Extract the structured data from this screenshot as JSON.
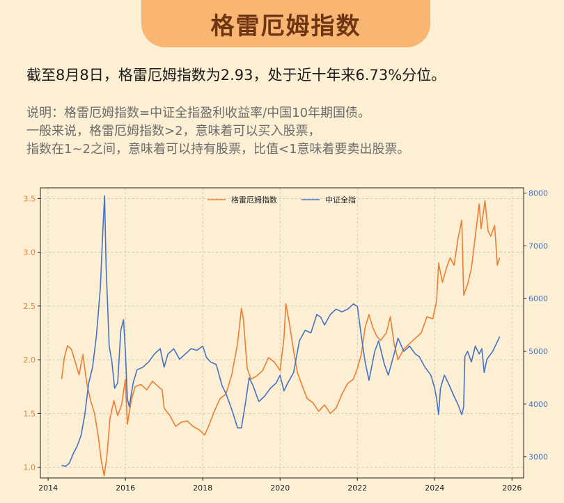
{
  "title": "格雷厄姆指数",
  "headline": "截至8月8日，格雷厄姆指数为2.93，处于近十年来6.73%分位。",
  "notes": [
    "说明：格雷厄姆指数=中证全指盈利收益率/中国10年期国债。",
    "一般来说，格雷厄姆指数>2，意味着可以买入股票，",
    "指数在1~2之间，意味着可以持有股票，比值<1意味着要卖出股票。"
  ],
  "chart_data": {
    "type": "line",
    "xlim": [
      2013.8,
      2026.3
    ],
    "x_ticks": [
      2014,
      2016,
      2018,
      2020,
      2022,
      2024,
      2026
    ],
    "y_left": {
      "lim": [
        0.9,
        3.6
      ],
      "ticks": [
        "1.0",
        "1.5",
        "2.0",
        "2.5",
        "3.0",
        "3.5"
      ],
      "color": "#ed7d31"
    },
    "y_right": {
      "lim": [
        2600,
        8100
      ],
      "ticks": [
        "3000",
        "4000",
        "5000",
        "6000",
        "7000",
        "8000"
      ],
      "color": "#4472c4"
    },
    "grid": true,
    "legend_position": "top-center",
    "series": [
      {
        "name": "格雷厄姆指数",
        "axis": "left",
        "color": "#ed7d31",
        "points": [
          [
            2014.35,
            1.82
          ],
          [
            2014.42,
            2.02
          ],
          [
            2014.5,
            2.13
          ],
          [
            2014.6,
            2.1
          ],
          [
            2014.7,
            1.98
          ],
          [
            2014.8,
            1.86
          ],
          [
            2014.9,
            2.05
          ],
          [
            2015.0,
            1.78
          ],
          [
            2015.1,
            1.62
          ],
          [
            2015.2,
            1.5
          ],
          [
            2015.3,
            1.28
          ],
          [
            2015.38,
            1.05
          ],
          [
            2015.45,
            0.92
          ],
          [
            2015.52,
            1.1
          ],
          [
            2015.6,
            1.45
          ],
          [
            2015.7,
            1.62
          ],
          [
            2015.8,
            1.48
          ],
          [
            2015.9,
            1.58
          ],
          [
            2016.0,
            1.82
          ],
          [
            2016.05,
            1.4
          ],
          [
            2016.15,
            1.62
          ],
          [
            2016.25,
            1.75
          ],
          [
            2016.4,
            1.77
          ],
          [
            2016.55,
            1.72
          ],
          [
            2016.7,
            1.8
          ],
          [
            2016.85,
            1.75
          ],
          [
            2016.95,
            1.72
          ],
          [
            2017.0,
            1.55
          ],
          [
            2017.15,
            1.48
          ],
          [
            2017.3,
            1.38
          ],
          [
            2017.45,
            1.42
          ],
          [
            2017.6,
            1.43
          ],
          [
            2017.75,
            1.38
          ],
          [
            2017.9,
            1.35
          ],
          [
            2018.05,
            1.3
          ],
          [
            2018.15,
            1.38
          ],
          [
            2018.3,
            1.52
          ],
          [
            2018.45,
            1.64
          ],
          [
            2018.6,
            1.68
          ],
          [
            2018.75,
            1.86
          ],
          [
            2018.9,
            2.15
          ],
          [
            2019.0,
            2.48
          ],
          [
            2019.05,
            2.38
          ],
          [
            2019.15,
            1.92
          ],
          [
            2019.25,
            1.82
          ],
          [
            2019.4,
            1.85
          ],
          [
            2019.55,
            1.9
          ],
          [
            2019.7,
            2.02
          ],
          [
            2019.85,
            1.98
          ],
          [
            2020.0,
            1.9
          ],
          [
            2020.1,
            2.2
          ],
          [
            2020.15,
            2.52
          ],
          [
            2020.25,
            2.32
          ],
          [
            2020.35,
            2.08
          ],
          [
            2020.45,
            1.88
          ],
          [
            2020.55,
            1.78
          ],
          [
            2020.7,
            1.64
          ],
          [
            2020.85,
            1.6
          ],
          [
            2021.0,
            1.52
          ],
          [
            2021.15,
            1.58
          ],
          [
            2021.3,
            1.5
          ],
          [
            2021.45,
            1.55
          ],
          [
            2021.6,
            1.68
          ],
          [
            2021.75,
            1.78
          ],
          [
            2021.9,
            1.82
          ],
          [
            2022.0,
            1.92
          ],
          [
            2022.1,
            2.05
          ],
          [
            2022.2,
            2.3
          ],
          [
            2022.3,
            2.42
          ],
          [
            2022.4,
            2.3
          ],
          [
            2022.5,
            2.22
          ],
          [
            2022.6,
            2.18
          ],
          [
            2022.75,
            2.25
          ],
          [
            2022.85,
            2.4
          ],
          [
            2022.95,
            2.15
          ],
          [
            2023.05,
            2.0
          ],
          [
            2023.2,
            2.1
          ],
          [
            2023.35,
            2.15
          ],
          [
            2023.5,
            2.2
          ],
          [
            2023.65,
            2.25
          ],
          [
            2023.8,
            2.4
          ],
          [
            2023.95,
            2.38
          ],
          [
            2024.05,
            2.55
          ],
          [
            2024.1,
            2.9
          ],
          [
            2024.2,
            2.72
          ],
          [
            2024.3,
            2.85
          ],
          [
            2024.4,
            2.95
          ],
          [
            2024.5,
            2.88
          ],
          [
            2024.6,
            3.12
          ],
          [
            2024.7,
            3.3
          ],
          [
            2024.75,
            2.6
          ],
          [
            2024.85,
            2.7
          ],
          [
            2024.95,
            2.85
          ],
          [
            2025.05,
            3.15
          ],
          [
            2025.15,
            3.45
          ],
          [
            2025.2,
            3.22
          ],
          [
            2025.3,
            3.48
          ],
          [
            2025.38,
            3.2
          ],
          [
            2025.45,
            3.15
          ],
          [
            2025.55,
            3.25
          ],
          [
            2025.62,
            2.88
          ],
          [
            2025.68,
            2.95
          ]
        ]
      },
      {
        "name": "中证全指",
        "axis": "right",
        "color": "#4472c4",
        "points": [
          [
            2014.35,
            2840
          ],
          [
            2014.45,
            2820
          ],
          [
            2014.55,
            2880
          ],
          [
            2014.65,
            3060
          ],
          [
            2014.75,
            3200
          ],
          [
            2014.85,
            3400
          ],
          [
            2014.95,
            3800
          ],
          [
            2015.05,
            4400
          ],
          [
            2015.15,
            4700
          ],
          [
            2015.25,
            5300
          ],
          [
            2015.35,
            6200
          ],
          [
            2015.42,
            7350
          ],
          [
            2015.46,
            7950
          ],
          [
            2015.5,
            6600
          ],
          [
            2015.58,
            5100
          ],
          [
            2015.65,
            4800
          ],
          [
            2015.72,
            4300
          ],
          [
            2015.8,
            4400
          ],
          [
            2015.88,
            5400
          ],
          [
            2015.95,
            5600
          ],
          [
            2016.0,
            5000
          ],
          [
            2016.05,
            4100
          ],
          [
            2016.1,
            3950
          ],
          [
            2016.2,
            4400
          ],
          [
            2016.3,
            4650
          ],
          [
            2016.45,
            4700
          ],
          [
            2016.6,
            4800
          ],
          [
            2016.75,
            4950
          ],
          [
            2016.9,
            5050
          ],
          [
            2017.0,
            4700
          ],
          [
            2017.1,
            4950
          ],
          [
            2017.25,
            5050
          ],
          [
            2017.4,
            4850
          ],
          [
            2017.55,
            4950
          ],
          [
            2017.7,
            5050
          ],
          [
            2017.85,
            5020
          ],
          [
            2018.0,
            5100
          ],
          [
            2018.1,
            4880
          ],
          [
            2018.2,
            4800
          ],
          [
            2018.35,
            4750
          ],
          [
            2018.5,
            4350
          ],
          [
            2018.6,
            4200
          ],
          [
            2018.75,
            3900
          ],
          [
            2018.9,
            3550
          ],
          [
            2019.0,
            3550
          ],
          [
            2019.1,
            4000
          ],
          [
            2019.2,
            4500
          ],
          [
            2019.3,
            4350
          ],
          [
            2019.45,
            4050
          ],
          [
            2019.6,
            4150
          ],
          [
            2019.75,
            4300
          ],
          [
            2019.9,
            4400
          ],
          [
            2020.0,
            4550
          ],
          [
            2020.1,
            4250
          ],
          [
            2020.2,
            4400
          ],
          [
            2020.35,
            4600
          ],
          [
            2020.5,
            5200
          ],
          [
            2020.65,
            5400
          ],
          [
            2020.8,
            5350
          ],
          [
            2020.95,
            5700
          ],
          [
            2021.05,
            5650
          ],
          [
            2021.15,
            5500
          ],
          [
            2021.3,
            5700
          ],
          [
            2021.45,
            5800
          ],
          [
            2021.6,
            5750
          ],
          [
            2021.75,
            5800
          ],
          [
            2021.9,
            5900
          ],
          [
            2022.0,
            5850
          ],
          [
            2022.1,
            5300
          ],
          [
            2022.2,
            4800
          ],
          [
            2022.3,
            4450
          ],
          [
            2022.45,
            5000
          ],
          [
            2022.55,
            5200
          ],
          [
            2022.7,
            4750
          ],
          [
            2022.8,
            4550
          ],
          [
            2022.95,
            4950
          ],
          [
            2023.05,
            5250
          ],
          [
            2023.2,
            5000
          ],
          [
            2023.35,
            5100
          ],
          [
            2023.5,
            4950
          ],
          [
            2023.6,
            4900
          ],
          [
            2023.75,
            4700
          ],
          [
            2023.9,
            4550
          ],
          [
            2024.0,
            4300
          ],
          [
            2024.05,
            4100
          ],
          [
            2024.1,
            3800
          ],
          [
            2024.15,
            4300
          ],
          [
            2024.25,
            4550
          ],
          [
            2024.35,
            4400
          ],
          [
            2024.5,
            4150
          ],
          [
            2024.6,
            4000
          ],
          [
            2024.7,
            3800
          ],
          [
            2024.75,
            3950
          ],
          [
            2024.78,
            4900
          ],
          [
            2024.85,
            5000
          ],
          [
            2024.95,
            4800
          ],
          [
            2025.05,
            5100
          ],
          [
            2025.15,
            4950
          ],
          [
            2025.22,
            5050
          ],
          [
            2025.28,
            4600
          ],
          [
            2025.35,
            4850
          ],
          [
            2025.5,
            5000
          ],
          [
            2025.6,
            5150
          ],
          [
            2025.68,
            5280
          ]
        ]
      }
    ]
  }
}
